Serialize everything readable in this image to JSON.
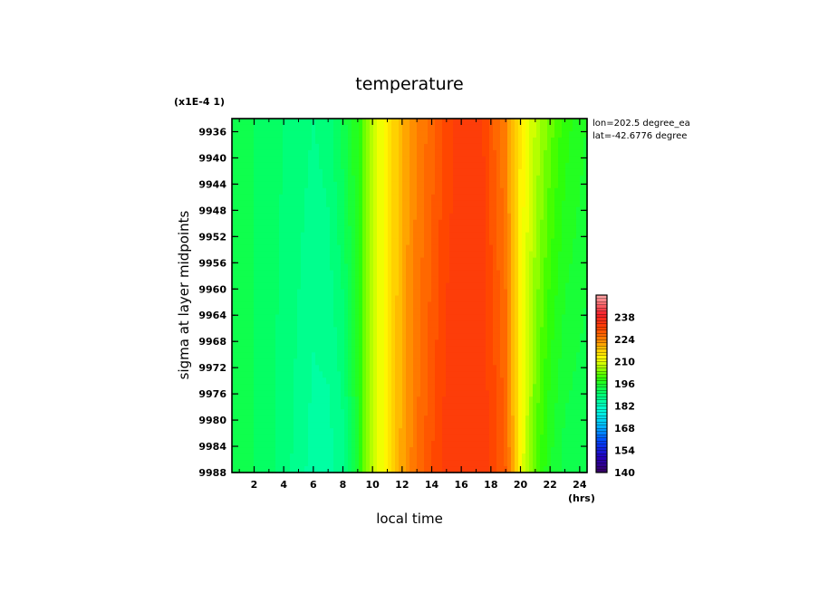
{
  "chart_data": {
    "type": "heatmap",
    "title": "temperature",
    "xlabel": "local time",
    "ylabel": "sigma at layer midpoints",
    "x_units": "(hrs)",
    "y_scale_label": "(x1E-4 1)",
    "annotation": [
      "lon=202.5 degree_ea",
      "lat=-42.6776 degree"
    ],
    "xlim": [
      0.5,
      24.5
    ],
    "ylim": [
      9988,
      9934
    ],
    "x_ticks": [
      "2",
      "4",
      "6",
      "8",
      "10",
      "12",
      "14",
      "16",
      "18",
      "20",
      "22",
      "24"
    ],
    "y_ticks": [
      "9936",
      "9940",
      "9944",
      "9948",
      "9952",
      "9956",
      "9960",
      "9964",
      "9968",
      "9972",
      "9976",
      "9980",
      "9984",
      "9988"
    ],
    "x": [
      0.5,
      2,
      4,
      6,
      7,
      8,
      9,
      9.5,
      10,
      10.5,
      11,
      11.5,
      12,
      13,
      14,
      15,
      16,
      17,
      17.5,
      18,
      19,
      19.5,
      20,
      21,
      22,
      23,
      24.5
    ],
    "y": [
      9934,
      9988
    ],
    "values": [
      [
        192,
        192,
        190,
        188,
        189,
        193,
        198,
        203,
        207,
        211,
        214,
        217,
        220,
        224,
        227,
        231,
        233,
        233,
        232,
        229,
        224,
        218,
        214,
        208,
        203,
        199,
        196
      ],
      [
        193,
        192,
        189,
        185,
        185,
        187,
        196,
        203,
        207,
        211,
        214,
        217,
        221,
        226,
        230,
        233,
        233,
        233,
        233,
        232,
        228,
        220,
        212,
        202,
        196,
        193,
        192
      ]
    ],
    "colorbar": {
      "min": 140,
      "max": 252,
      "step": 2,
      "tick_labels": [
        "140",
        "154",
        "168",
        "182",
        "196",
        "210",
        "224",
        "238"
      ]
    }
  }
}
